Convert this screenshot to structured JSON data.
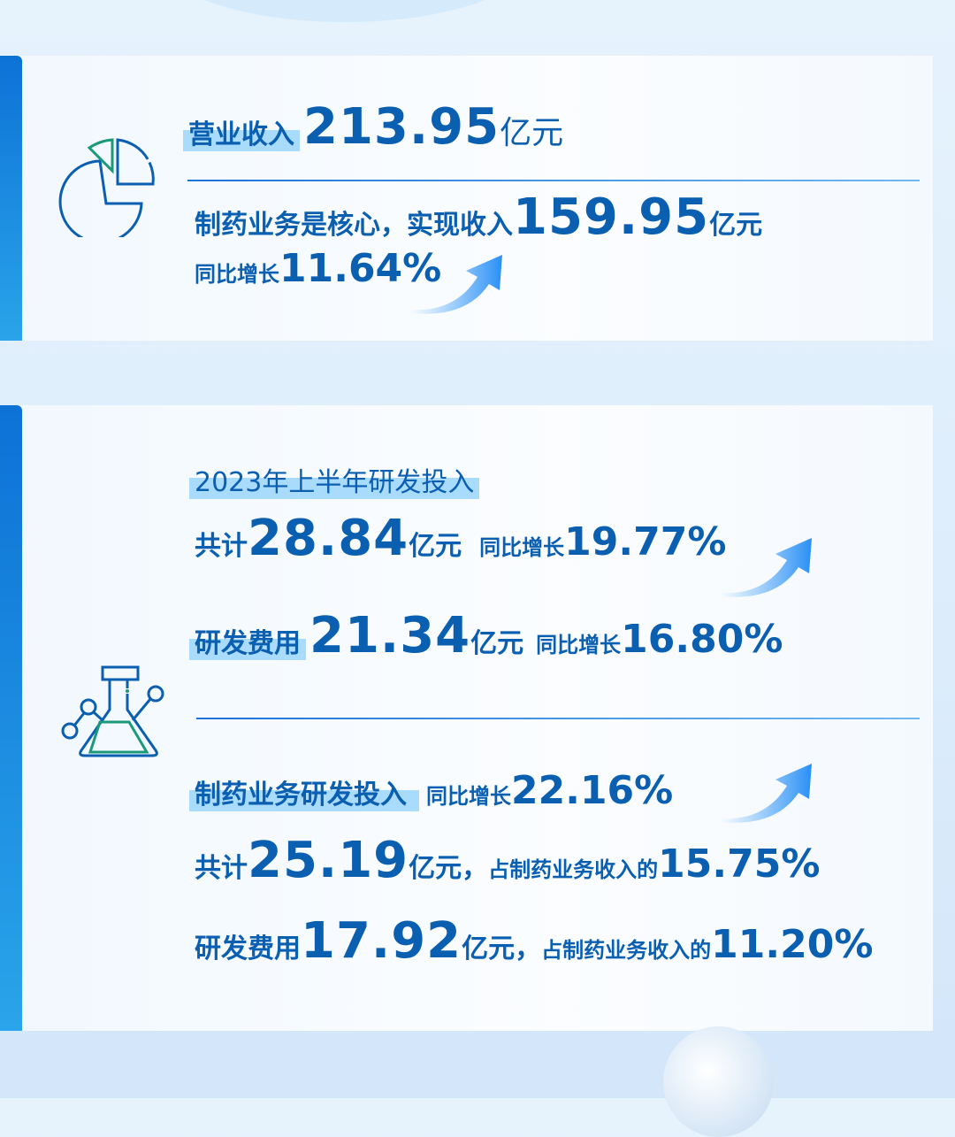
{
  "revenue": {
    "label": "营业收入",
    "value": "213.95",
    "unit": "亿元"
  },
  "pharma": {
    "prefix": "制药业务是核心，实现收入",
    "value": "159.95",
    "unit": "亿元",
    "growth_label": "同比增长",
    "growth": "11.64%"
  },
  "rd": {
    "title": "2023年上半年研发投入",
    "total_prefix": "共计",
    "total": "28.84",
    "total_unit": "亿元",
    "total_growth_label": "同比增长",
    "total_growth": "19.77%",
    "expense_label": "研发费用",
    "expense": "21.34",
    "expense_unit": "亿元",
    "expense_growth_label": "同比增长",
    "expense_growth": "16.80%"
  },
  "pharma_rd": {
    "title": "制药业务研发投入",
    "growth_label": "同比增长",
    "growth": "22.16%",
    "total_prefix": "共计",
    "total": "25.19",
    "total_unit": "亿元，",
    "total_share_label": "占制药业务收入的",
    "total_share": "15.75%",
    "expense_label": "研发费用",
    "expense": "17.92",
    "expense_unit": "亿元，",
    "expense_share_label": "占制药业务收入的",
    "expense_share": "11.20%"
  },
  "icons": [
    "pie-chart-icon",
    "flask-icon",
    "arrow-up-right-icon"
  ],
  "colors": {
    "text": "#0b5fb0",
    "highlight": "#a9dbfd",
    "accent_green": "#1a9a7a",
    "bar": "#0d72d6"
  }
}
